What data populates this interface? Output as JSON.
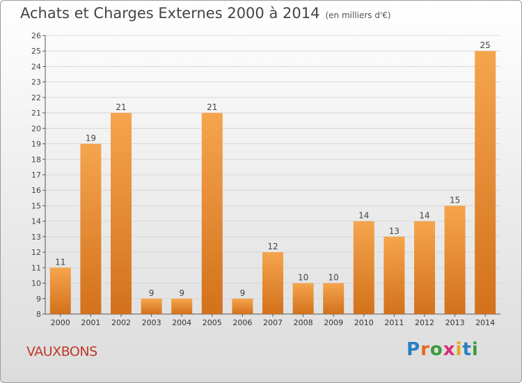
{
  "header": {
    "title": "Achats et Charges Externes 2000 à 2014",
    "subtitle": "(en milliers d'€)"
  },
  "footer": {
    "place": "VAUXBONS",
    "logo": "Proxiti"
  },
  "colors": {
    "bar_light": "#f5a54d",
    "bar_dark": "#d3711c",
    "place": "#c0392b"
  },
  "chart_data": {
    "type": "bar",
    "title": "Achats et Charges Externes 2000 à 2014",
    "subtitle": "(en milliers d'€)",
    "categories": [
      "2000",
      "2001",
      "2002",
      "2003",
      "2004",
      "2005",
      "2006",
      "2007",
      "2008",
      "2009",
      "2010",
      "2011",
      "2012",
      "2013",
      "2014"
    ],
    "values": [
      11,
      19,
      21,
      9,
      9,
      21,
      9,
      12,
      10,
      10,
      14,
      13,
      14,
      15,
      25
    ],
    "ylim": [
      8,
      26
    ],
    "yticks": [
      8,
      9,
      10,
      11,
      12,
      13,
      14,
      15,
      16,
      17,
      18,
      19,
      20,
      21,
      22,
      23,
      24,
      25,
      26
    ],
    "grid": true,
    "legend": "none",
    "xlabel": "",
    "ylabel": ""
  }
}
